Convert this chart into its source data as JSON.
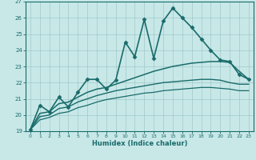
{
  "xlabel": "Humidex (Indice chaleur)",
  "bg_color": "#c8e8e8",
  "grid_color": "#a0c8c8",
  "line_color": "#1a6b6b",
  "xlim": [
    -0.5,
    23.5
  ],
  "ylim": [
    19,
    27
  ],
  "xticks": [
    0,
    1,
    2,
    3,
    4,
    5,
    6,
    7,
    8,
    9,
    10,
    11,
    12,
    13,
    14,
    15,
    16,
    17,
    18,
    19,
    20,
    21,
    22,
    23
  ],
  "yticks": [
    19,
    20,
    21,
    22,
    23,
    24,
    25,
    26,
    27
  ],
  "series": [
    {
      "x": [
        0,
        1,
        2,
        3,
        4,
        5,
        6,
        7,
        8,
        9,
        10,
        11,
        12,
        13,
        14,
        15,
        16,
        17,
        18,
        19,
        20,
        21,
        22,
        23
      ],
      "y": [
        19.1,
        20.6,
        20.2,
        21.1,
        20.5,
        21.4,
        22.2,
        22.2,
        21.6,
        22.15,
        24.5,
        23.6,
        25.9,
        23.5,
        25.8,
        26.6,
        26.0,
        25.4,
        24.7,
        24.0,
        23.4,
        23.3,
        22.5,
        22.2
      ],
      "marker": "D",
      "markersize": 2.5,
      "linewidth": 1.2,
      "has_marker": true
    },
    {
      "x": [
        0,
        1,
        2,
        3,
        4,
        5,
        6,
        7,
        8,
        9,
        10,
        11,
        12,
        13,
        14,
        15,
        16,
        17,
        18,
        19,
        20,
        21,
        22,
        23
      ],
      "y": [
        19.1,
        20.1,
        20.2,
        20.7,
        20.8,
        21.1,
        21.4,
        21.6,
        21.7,
        21.9,
        22.1,
        22.3,
        22.5,
        22.7,
        22.85,
        23.0,
        23.1,
        23.2,
        23.25,
        23.3,
        23.3,
        23.25,
        22.7,
        22.2
      ],
      "marker": null,
      "linewidth": 1.1,
      "has_marker": false
    },
    {
      "x": [
        0,
        1,
        2,
        3,
        4,
        5,
        6,
        7,
        8,
        9,
        10,
        11,
        12,
        13,
        14,
        15,
        16,
        17,
        18,
        19,
        20,
        21,
        22,
        23
      ],
      "y": [
        19.1,
        19.9,
        20.0,
        20.4,
        20.5,
        20.8,
        21.0,
        21.2,
        21.35,
        21.5,
        21.6,
        21.7,
        21.8,
        21.9,
        22.0,
        22.05,
        22.1,
        22.15,
        22.2,
        22.2,
        22.15,
        22.0,
        21.9,
        21.9
      ],
      "marker": null,
      "linewidth": 1.0,
      "has_marker": false
    },
    {
      "x": [
        0,
        1,
        2,
        3,
        4,
        5,
        6,
        7,
        8,
        9,
        10,
        11,
        12,
        13,
        14,
        15,
        16,
        17,
        18,
        19,
        20,
        21,
        22,
        23
      ],
      "y": [
        19.1,
        19.7,
        19.85,
        20.1,
        20.2,
        20.45,
        20.6,
        20.8,
        20.95,
        21.05,
        21.15,
        21.25,
        21.35,
        21.4,
        21.5,
        21.55,
        21.6,
        21.65,
        21.7,
        21.7,
        21.65,
        21.6,
        21.5,
        21.5
      ],
      "marker": null,
      "linewidth": 0.9,
      "has_marker": false
    }
  ]
}
